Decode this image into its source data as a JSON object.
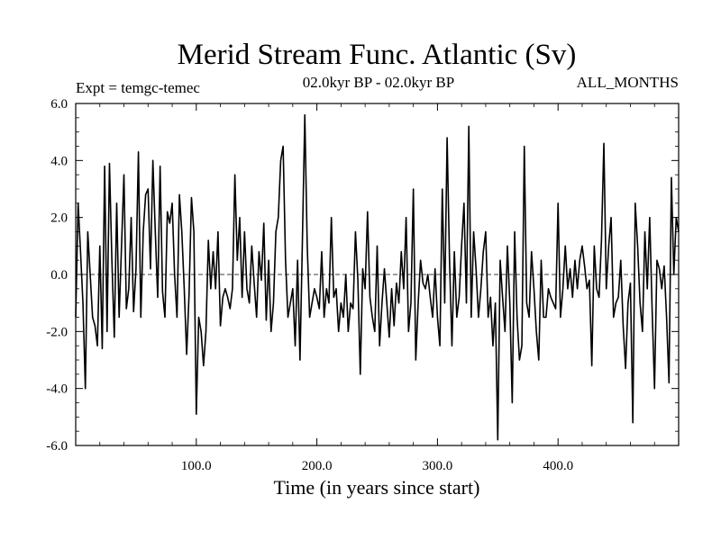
{
  "header": {
    "title": "Merid Stream Func. Atlantic (Sv)",
    "expt": "Expt = temgc-temec",
    "period": "02.0kyr BP - 02.0kyr BP",
    "months": "ALL_MONTHS"
  },
  "chart_data": {
    "type": "line",
    "title": "Merid Stream Func. Atlantic (Sv)",
    "xlabel": "Time (in years since start)",
    "ylabel": "",
    "xlim": [
      0,
      500
    ],
    "ylim": [
      -6,
      6
    ],
    "x_ticks": [
      100,
      200,
      300,
      400
    ],
    "x_tick_labels": [
      "100.0",
      "200.0",
      "300.0",
      "400.0"
    ],
    "y_ticks": [
      -6,
      -4,
      -2,
      0,
      2,
      4,
      6
    ],
    "y_tick_labels": [
      "-6.0",
      "-4.0",
      "-2.0",
      "0.0",
      "2.0",
      "4.0",
      "6.0"
    ],
    "zero_line": true,
    "series": [
      {
        "name": "temgc-temec",
        "color": "#000000",
        "x_start": 0,
        "x_step": 2,
        "values": [
          -1.5,
          2.5,
          0.8,
          -1.0,
          -4.0,
          1.5,
          0.0,
          -1.5,
          -1.8,
          -2.5,
          1.0,
          -2.6,
          3.8,
          -2.0,
          3.9,
          0.5,
          -2.2,
          2.5,
          -1.5,
          1.0,
          3.5,
          -1.2,
          -0.5,
          2.0,
          -1.3,
          0.2,
          4.3,
          -1.5,
          1.5,
          2.8,
          3.0,
          0.2,
          4.0,
          1.5,
          -0.8,
          3.8,
          -0.6,
          -1.5,
          2.2,
          1.8,
          2.5,
          0.0,
          -1.5,
          2.8,
          1.5,
          -0.5,
          -2.8,
          -0.7,
          2.7,
          1.5,
          -4.9,
          -1.5,
          -2.0,
          -3.2,
          -2.0,
          1.2,
          -0.5,
          0.8,
          -0.5,
          1.5,
          -1.8,
          -0.8,
          -0.5,
          -0.8,
          -1.2,
          -0.5,
          3.5,
          0.5,
          2.0,
          -0.8,
          1.5,
          -0.5,
          -1.0,
          1.0,
          -0.3,
          -1.5,
          0.8,
          -0.2,
          1.8,
          -1.6,
          0.5,
          -2.0,
          -1.0,
          1.5,
          2.0,
          4.0,
          4.5,
          0.5,
          -1.5,
          -1.0,
          -0.5,
          -2.5,
          0.5,
          -3.0,
          1.2,
          5.6,
          1.0,
          -1.5,
          -1.0,
          -0.5,
          -0.8,
          -1.2,
          0.8,
          -1.5,
          -0.5,
          -1.0,
          2.0,
          -0.8,
          -0.5,
          -2.0,
          -1.0,
          -1.5,
          0.0,
          -2.0,
          -1.0,
          -1.2,
          1.5,
          -0.2,
          -3.5,
          0.2,
          -0.5,
          2.2,
          -0.8,
          -1.5,
          -2.0,
          1.0,
          -2.5,
          -1.0,
          0.2,
          -1.0,
          -2.2,
          -0.5,
          -1.8,
          -0.3,
          -1.0,
          0.8,
          -0.5,
          2.0,
          -2.0,
          -1.0,
          3.0,
          -3.0,
          -1.0,
          0.5,
          -0.3,
          -0.5,
          0.0,
          -0.8,
          -1.5,
          0.2,
          -1.5,
          -2.5,
          3.0,
          -1.0,
          4.8,
          0.5,
          -2.5,
          0.8,
          -1.5,
          -0.8,
          1.0,
          2.5,
          -1.0,
          5.2,
          -1.5,
          1.5,
          0.2,
          -1.5,
          -0.5,
          0.8,
          1.5,
          -1.5,
          -0.8,
          -2.5,
          -1.0,
          -5.8,
          0.5,
          -0.8,
          -2.0,
          1.0,
          -1.0,
          -4.5,
          1.5,
          -1.5,
          -3.0,
          -2.5,
          4.5,
          -1.0,
          -1.5,
          0.8,
          -0.5,
          -2.0,
          -3.0,
          0.5,
          -1.5,
          -1.5,
          -0.5,
          -0.8,
          -1.0,
          -1.2,
          2.5,
          -1.5,
          -0.5,
          1.0,
          -0.5,
          0.2,
          -0.8,
          0.5,
          -0.5,
          0.5,
          1.0,
          0.3,
          -0.5,
          -0.2,
          -3.2,
          1.0,
          -0.5,
          -0.8,
          1.2,
          4.6,
          -0.5,
          1.0,
          2.0,
          -1.5,
          -1.0,
          -0.8,
          0.5,
          -1.8,
          -3.3,
          -1.0,
          -0.3,
          -5.2,
          2.5,
          1.0,
          -1.0,
          -2.0,
          1.5,
          -0.5,
          2.0,
          -1.2,
          -4.0,
          0.5,
          0.2,
          -0.5,
          0.3,
          -1.5,
          -3.8,
          3.4,
          0.0,
          2.0,
          1.5
        ]
      }
    ]
  }
}
